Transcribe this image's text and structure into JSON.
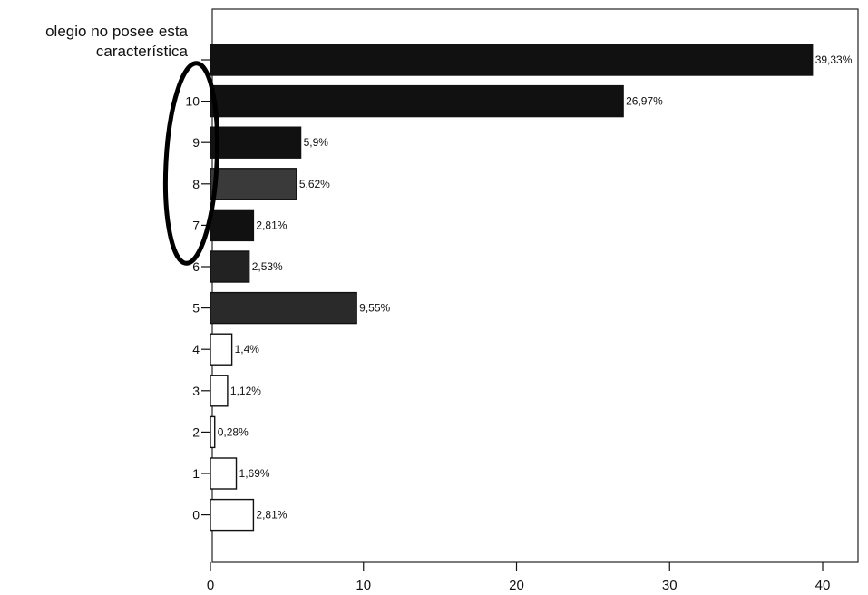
{
  "chart_data": {
    "type": "bar",
    "orientation": "horizontal",
    "categories": [
      "olegio no posee esta característica",
      "10",
      "9",
      "8",
      "7",
      "6",
      "5",
      "4",
      "3",
      "2",
      "1",
      "0"
    ],
    "category_label_lines": [
      [
        "olegio no posee esta",
        "característica"
      ],
      [
        "10"
      ],
      [
        "9"
      ],
      [
        "8"
      ],
      [
        "7"
      ],
      [
        "6"
      ],
      [
        "5"
      ],
      [
        "4"
      ],
      [
        "3"
      ],
      [
        "2"
      ],
      [
        "1"
      ],
      [
        "0"
      ]
    ],
    "values": [
      39.33,
      26.97,
      5.9,
      5.62,
      2.81,
      2.53,
      9.55,
      1.4,
      1.12,
      0.28,
      1.69,
      2.81
    ],
    "data_labels": [
      "39,33%",
      "26,97%",
      "5,9%",
      "5,62%",
      "2,81%",
      "2,53%",
      "9,55%",
      "1,4%",
      "1,12%",
      "0,28%",
      "1,69%",
      "2,81%"
    ],
    "bar_fills": [
      "#111111",
      "#111111",
      "#111111",
      "#3a3a3a",
      "#111111",
      "#222222",
      "#2a2a2a",
      "#ffffff",
      "#ffffff",
      "#ffffff",
      "#ffffff",
      "#ffffff"
    ],
    "xlim": [
      0,
      42
    ],
    "x_ticks": [
      0,
      10,
      20,
      30,
      40
    ],
    "x_tick_labels": [
      "0",
      "10",
      "20",
      "30",
      "40"
    ],
    "title": "",
    "xlabel": "",
    "ylabel": "",
    "grid": false,
    "annotation": "ellipse-around-categories-10-to-7",
    "highlighted_categories": [
      "10",
      "9",
      "8",
      "7"
    ]
  }
}
